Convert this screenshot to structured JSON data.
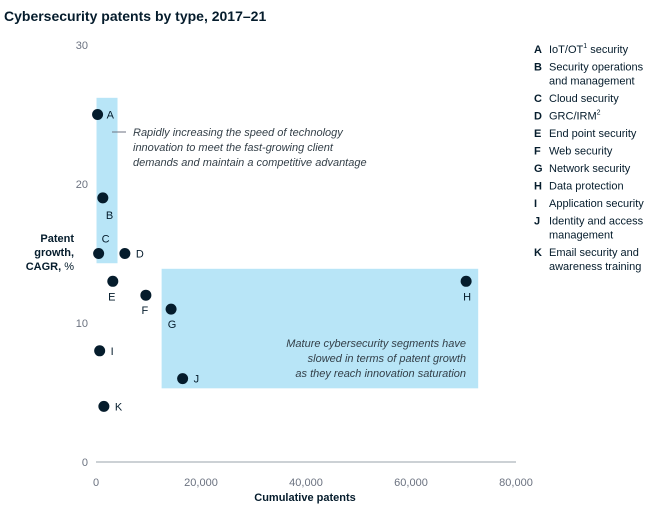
{
  "colors": {
    "point": "#051c2c",
    "highlight": "#b8e5f7",
    "axis": "#6b7280",
    "text": "#051c2c"
  },
  "chart_data": {
    "type": "scatter",
    "title": "Cybersecurity patents by type, 2017–21",
    "xlabel": "Cumulative patents",
    "ylabel_parts": [
      "Patent",
      "growth,",
      "CAGR,",
      "%"
    ],
    "xlim": [
      0,
      80000
    ],
    "ylim": [
      0,
      30
    ],
    "xticks": [
      0,
      20000,
      40000,
      60000,
      80000
    ],
    "xtick_labels": [
      "0",
      "20,000",
      "40,000",
      "60,000",
      "80,000"
    ],
    "yticks": [
      0,
      10,
      20,
      30
    ],
    "ytick_labels": [
      "0",
      "10",
      "20",
      "30"
    ],
    "grid": false,
    "points": [
      {
        "label": "A",
        "x": 300,
        "y": 25
      },
      {
        "label": "B",
        "x": 1300,
        "y": 19
      },
      {
        "label": "C",
        "x": 500,
        "y": 15
      },
      {
        "label": "D",
        "x": 5500,
        "y": 15
      },
      {
        "label": "E",
        "x": 3200,
        "y": 13
      },
      {
        "label": "F",
        "x": 9500,
        "y": 12
      },
      {
        "label": "G",
        "x": 14300,
        "y": 11
      },
      {
        "label": "H",
        "x": 70500,
        "y": 13
      },
      {
        "label": "I",
        "x": 700,
        "y": 8
      },
      {
        "label": "J",
        "x": 16500,
        "y": 6
      },
      {
        "label": "K",
        "x": 1500,
        "y": 4
      }
    ],
    "regions": [
      {
        "x0": 100,
        "x1": 4100,
        "y0": 14.3,
        "y1": 26.2,
        "text": [
          "Rapidly increasing the speed of technology",
          "innovation to meet the fast-growing client",
          "demands and maintain a competitive advantage"
        ]
      },
      {
        "x0": 12500,
        "x1": 72800,
        "y0": 5.3,
        "y1": 13.9,
        "text": [
          "Mature cybersecurity segments have",
          "slowed in terms of patent growth",
          "as they reach innovation saturation"
        ]
      }
    ],
    "legend": [
      {
        "letter": "A",
        "lines": [
          "IoT/OT",
          "security"
        ],
        "sup": "1"
      },
      {
        "letter": "B",
        "lines": [
          "Security operations",
          "and management"
        ]
      },
      {
        "letter": "C",
        "lines": [
          "Cloud security"
        ]
      },
      {
        "letter": "D",
        "lines": [
          "GRC/IRM"
        ],
        "sup": "2"
      },
      {
        "letter": "E",
        "lines": [
          "End point security"
        ]
      },
      {
        "letter": "F",
        "lines": [
          "Web security"
        ]
      },
      {
        "letter": "G",
        "lines": [
          "Network security"
        ]
      },
      {
        "letter": "H",
        "lines": [
          "Data protection"
        ]
      },
      {
        "letter": "I",
        "lines": [
          "Application security"
        ]
      },
      {
        "letter": "J",
        "lines": [
          "Identity and access",
          "management"
        ]
      },
      {
        "letter": "K",
        "lines": [
          "Email security and",
          "awareness training"
        ]
      }
    ]
  }
}
